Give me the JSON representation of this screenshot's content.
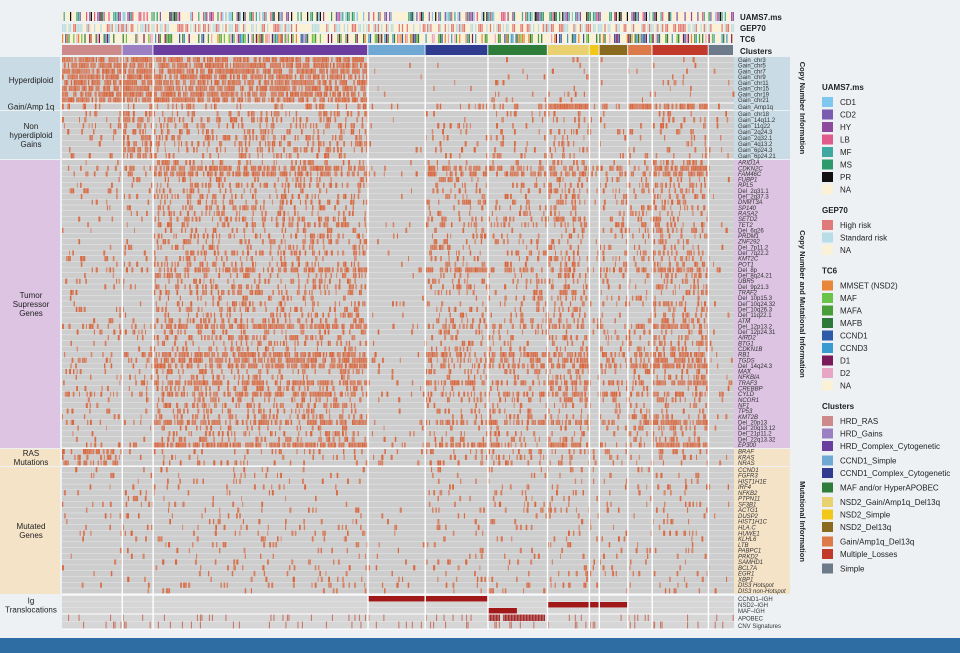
{
  "chart_data": {
    "type": "heatmap",
    "title": "",
    "annotation_tracks": [
      "UAMS7.ms",
      "GEP70",
      "TC6",
      "Clusters"
    ],
    "clusters": [
      {
        "name": "HRD_RAS",
        "color": "#cd8a8a",
        "weight": 5.5
      },
      {
        "name": "HRD_Gains",
        "color": "#9b7fc3",
        "weight": 2.8
      },
      {
        "name": "HRD_Complex_Cytogenetic",
        "color": "#6a3d9e",
        "weight": 19.5
      },
      {
        "name": "CCND1_Simple",
        "color": "#6fa8d3",
        "weight": 5.2
      },
      {
        "name": "CCND1_Complex_Cytogenetic",
        "color": "#2f3c8f",
        "weight": 5.7
      },
      {
        "name": "MAF and/or HyperAPOBEC",
        "color": "#2f7d3a",
        "weight": 5.4
      },
      {
        "name": "NSD2_Gain/Amp1q_Del13q",
        "color": "#e8d16e",
        "weight": 3.8
      },
      {
        "name": "NSD2_Simple",
        "color": "#f2c818",
        "weight": 0.9
      },
      {
        "name": "NSD2_Del13q",
        "color": "#8a6a1e",
        "weight": 2.6
      },
      {
        "name": "Gain/Amp1q_Del13q",
        "color": "#dd7a4a",
        "weight": 2.2
      },
      {
        "name": "Multiple_Losses",
        "color": "#c0392b",
        "weight": 5.1
      },
      {
        "name": "Simple",
        "color": "#6c7a89",
        "weight": 2.3
      }
    ],
    "row_groups": [
      {
        "label": "Hyperdiploid",
        "bg": "#c9dbe4",
        "rows": [
          "Gain_chr3",
          "Gain_chr5",
          "Gain_chr7",
          "Gain_chr9",
          "Gain_chr11",
          "Gain_chr15",
          "Gain_chr19",
          "Gain_chr21"
        ]
      },
      {
        "label": "Gain/Amp 1q",
        "bg": "#c9dbe4",
        "rows": [
          "Gain_Amp1q"
        ]
      },
      {
        "label": "Non hyperdiploid Gains",
        "bg": "#c9dbe4",
        "rows": [
          "Gain_chr18",
          "Gain_14q11.2",
          "Gain_11q22",
          "Gain_2q24.3",
          "Gain_2q32.1",
          "Gain_4q13.2",
          "Gain_6p24.3",
          "Gain_6p24.21"
        ]
      },
      {
        "label": "Tumor Supressor Genes",
        "bg": "#dcc4e2",
        "rows": [
          "ARID1A",
          "CDKN2C",
          "FAM46C",
          "FUBP1",
          "RPL5",
          "Del_2q31.1",
          "Del_2q37.3",
          "DNMT3A",
          "SP140",
          "RASA2",
          "SETD2",
          "TET2",
          "Del_6q26",
          "PRDM1",
          "ZNF292",
          "Del_7p11.2",
          "Del_7q22.2",
          "KMT2C",
          "POT1",
          "Del_8p",
          "Del_8q24.21",
          "UBR5",
          "Del_9p21.3",
          "TRAF2",
          "Del_10p15.3",
          "Del_10q24.32",
          "Del_10q26.3",
          "Del_11q22.1",
          "ATM",
          "Del_12p13.2",
          "Del_12p24.31",
          "AIRD2",
          "BTG1",
          "CDKN1B",
          "RB1",
          "TGDS",
          "Del_14q24.3",
          "MAX",
          "NFKBIA",
          "TRAF3",
          "CREBBP",
          "CYLD",
          "NCOR1",
          "NF1",
          "TP53",
          "KMT2B",
          "Del_20p13",
          "Del_20q13.12",
          "Del_21p11.2",
          "Del_22q13.32",
          "EP300"
        ]
      },
      {
        "label": "RAS Mutations",
        "bg": "#f5e3c8",
        "rows": [
          "BRAF",
          "KRAS",
          "NRAS"
        ]
      },
      {
        "label": "Mutated Genes",
        "bg": "#f5e3c8",
        "rows": [
          "CCND1",
          "FGFR3",
          "HIST1H1E",
          "IRF4",
          "NFKB2",
          "PTPN11",
          "SF3B1",
          "ACTG1",
          "DUSP2",
          "HIST1H1C",
          "HLA.C",
          "HUWE1",
          "KLHL6",
          "LTB",
          "PABPC1",
          "PRKD2",
          "SAMHD1",
          "BCL7A",
          "EGR1",
          "XBP1",
          "DIS3 Hotspot",
          "DIS3 non-Hotspot"
        ]
      },
      {
        "label": "Ig Translocations",
        "bg": "#eef1f4",
        "rows": [
          "CCND1–IGH",
          "NSD2–IGH",
          "MAF–IGH"
        ]
      },
      {
        "label": "",
        "bg": "#eef1f4",
        "rows": [
          "APOBEC",
          "CNV Signatures"
        ]
      }
    ],
    "section_labels": [
      "Copy Number Information",
      "Copy Number and Mutational Information",
      "Mutational Information"
    ],
    "legend": [
      {
        "title": "UAMS7.ms",
        "items": [
          {
            "label": "CD1",
            "color": "#7ec8f0"
          },
          {
            "label": "CD2",
            "color": "#7a5bb0"
          },
          {
            "label": "HY",
            "color": "#8e4a9c"
          },
          {
            "label": "LB",
            "color": "#e05a8a"
          },
          {
            "label": "MF",
            "color": "#3fa8a0"
          },
          {
            "label": "MS",
            "color": "#2e9a6a"
          },
          {
            "label": "PR",
            "color": "#111111"
          },
          {
            "label": "NA",
            "color": "#fbf1d6"
          }
        ]
      },
      {
        "title": "GEP70",
        "items": [
          {
            "label": "High risk",
            "color": "#e07a7a"
          },
          {
            "label": "Standard risk",
            "color": "#b8dde6"
          },
          {
            "label": "NA",
            "color": "#fbf1d6"
          }
        ]
      },
      {
        "title": "TC6",
        "items": [
          {
            "label": "MMSET (NSD2)",
            "color": "#e8873a"
          },
          {
            "label": "MAF",
            "color": "#6cc34a"
          },
          {
            "label": "MAFA",
            "color": "#4a9e3a"
          },
          {
            "label": "MAFB",
            "color": "#2d7a3a"
          },
          {
            "label": "CCND1",
            "color": "#2f5aa8"
          },
          {
            "label": "CCND3",
            "color": "#3a9bd0"
          },
          {
            "label": "D1",
            "color": "#7a1a5a"
          },
          {
            "label": "D2",
            "color": "#e9a6c4"
          },
          {
            "label": "NA",
            "color": "#fbf1d6"
          }
        ]
      },
      {
        "title": "Clusters",
        "items": [
          {
            "label": "HRD_RAS",
            "color": "#cd8a8a"
          },
          {
            "label": "HRD_Gains",
            "color": "#9b7fc3"
          },
          {
            "label": "HRD_Complex_Cytogenetic",
            "color": "#6a3d9e"
          },
          {
            "label": "CCND1_Simple",
            "color": "#6fa8d3"
          },
          {
            "label": "CCND1_Complex_Cytogenetic",
            "color": "#2f3c8f"
          },
          {
            "label": "MAF and/or HyperAPOBEC",
            "color": "#2f7d3a"
          },
          {
            "label": "NSD2_Gain/Amp1q_Del13q",
            "color": "#e8d16e"
          },
          {
            "label": "NSD2_Simple",
            "color": "#f2c818"
          },
          {
            "label": "NSD2_Del13q",
            "color": "#8a6a1e"
          },
          {
            "label": "Gain/Amp1q_Del13q",
            "color": "#dd7a4a"
          },
          {
            "label": "Multiple_Losses",
            "color": "#c0392b"
          },
          {
            "label": "Simple",
            "color": "#6c7a89"
          }
        ]
      }
    ],
    "colors": {
      "event": "#d9643a",
      "background": "#cdcdcd",
      "translocation": "#a01818",
      "footer": "#2e6da4"
    }
  }
}
